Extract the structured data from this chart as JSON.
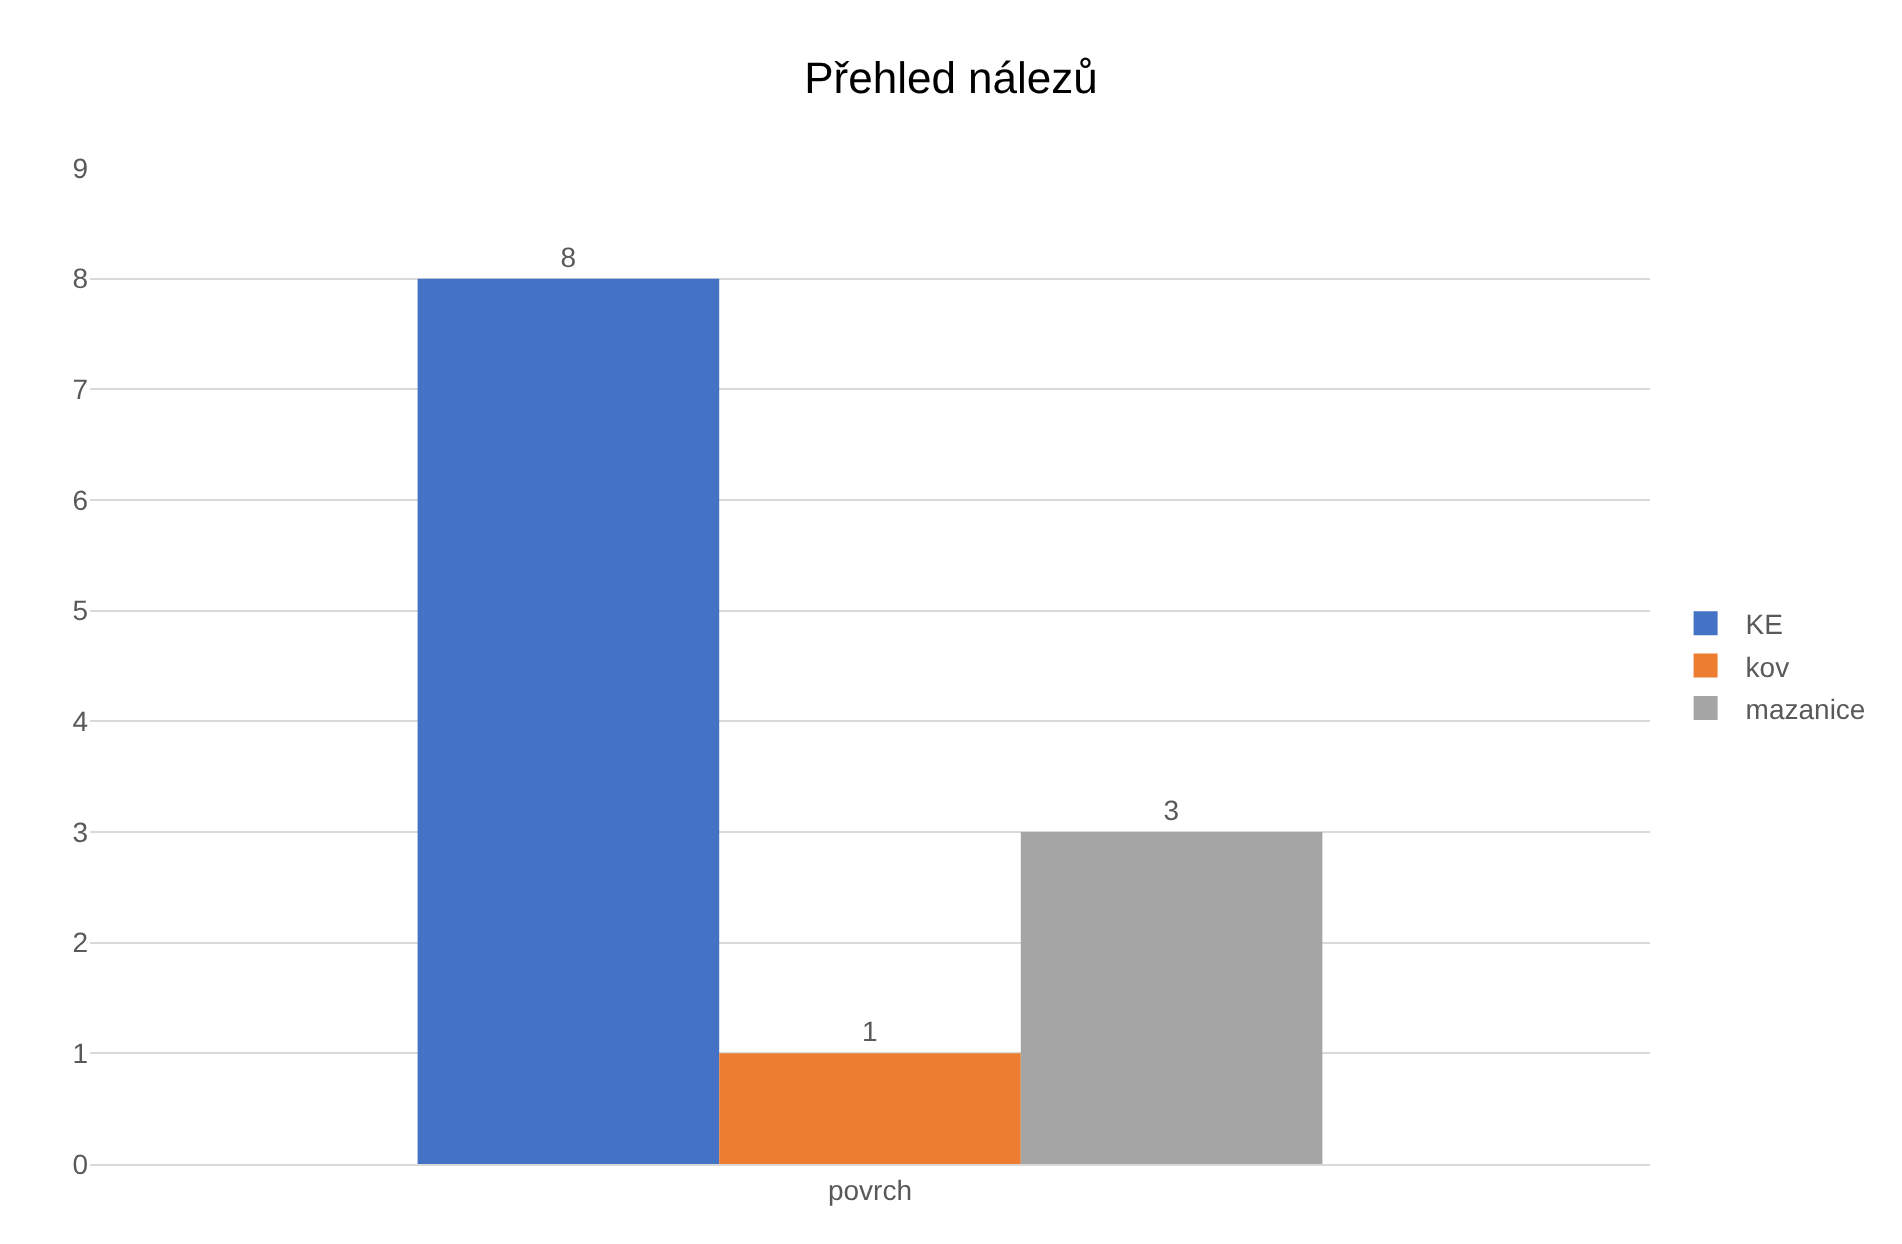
{
  "chart_data": {
    "type": "bar",
    "title": "Přehled nálezů",
    "categories": [
      "povrch"
    ],
    "series": [
      {
        "name": "KE",
        "color": "#4472c4",
        "values": [
          8
        ]
      },
      {
        "name": "kov",
        "color": "#ed7d31",
        "values": [
          1
        ]
      },
      {
        "name": "mazanice",
        "color": "#a5a5a5",
        "values": [
          3
        ]
      }
    ],
    "ylim": [
      0,
      9
    ],
    "yticks": [
      0,
      1,
      2,
      3,
      4,
      5,
      6,
      7,
      8,
      9
    ],
    "grid": "y",
    "legend": "right",
    "data_labels": true
  }
}
